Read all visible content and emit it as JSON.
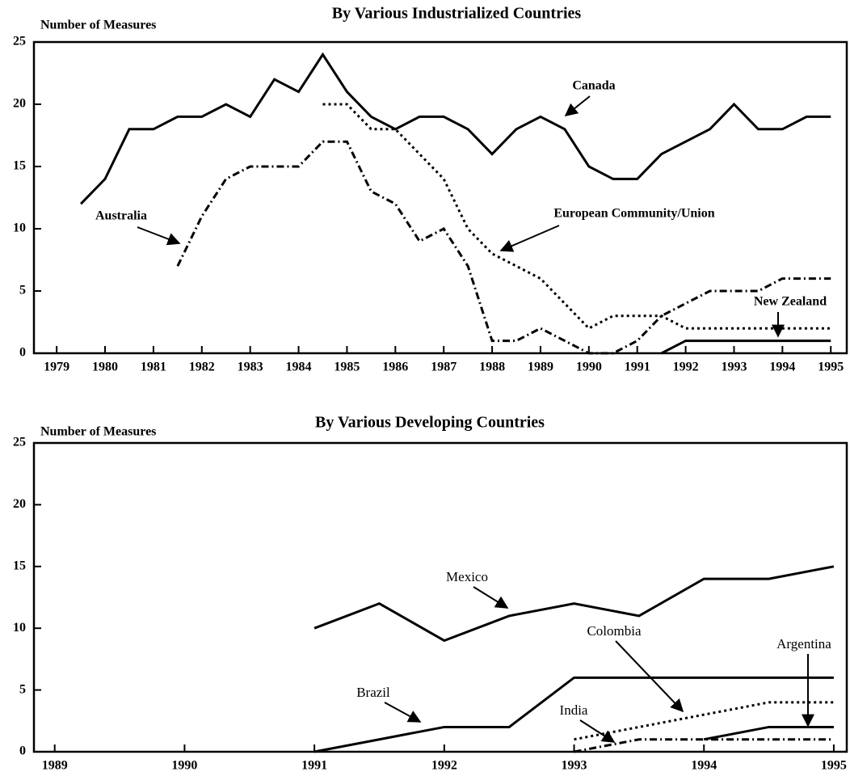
{
  "chart_data": [
    {
      "type": "line",
      "title": "By Various Industrialized Countries",
      "y_label": "Number of Measures",
      "x": [
        1979.5,
        1980,
        1980.5,
        1981,
        1981.5,
        1982,
        1982.5,
        1983,
        1983.5,
        1984,
        1984.5,
        1985,
        1985.5,
        1986,
        1986.5,
        1987,
        1987.5,
        1988,
        1988.5,
        1989,
        1989.5,
        1990,
        1990.5,
        1991,
        1991.5,
        1992,
        1992.5,
        1993,
        1993.5,
        1994,
        1994.5,
        1995
      ],
      "series": [
        {
          "name": "Canada",
          "color": "#000000",
          "dash": "solid",
          "values": [
            12,
            14,
            18,
            18,
            19,
            19,
            20,
            19,
            22,
            21,
            24,
            21,
            19,
            18,
            19,
            19,
            18,
            16,
            18,
            19,
            18,
            15,
            14,
            14,
            16,
            17,
            18,
            20,
            18,
            18,
            19,
            19
          ]
        },
        {
          "name": "European Community/Union",
          "color": "#000000",
          "dash": "dot",
          "values": [
            null,
            null,
            null,
            null,
            null,
            null,
            null,
            null,
            null,
            null,
            20,
            20,
            18,
            18,
            16,
            14,
            10,
            8,
            7,
            6,
            4,
            2,
            3,
            3,
            3,
            2,
            2,
            2,
            2,
            2,
            2,
            2
          ]
        },
        {
          "name": "Australia",
          "color": "#000000",
          "dash": "dashdot",
          "values": [
            null,
            null,
            null,
            null,
            7,
            11,
            14,
            15,
            15,
            15,
            17,
            17,
            13,
            12,
            9,
            10,
            7,
            1,
            1,
            2,
            1,
            0,
            0,
            1,
            3,
            4,
            5,
            5,
            5,
            6,
            6,
            6
          ]
        },
        {
          "name": "New Zealand",
          "color": "#000000",
          "dash": "solid",
          "values": [
            null,
            null,
            null,
            null,
            null,
            null,
            null,
            null,
            null,
            null,
            null,
            null,
            null,
            null,
            null,
            null,
            null,
            null,
            null,
            null,
            null,
            null,
            null,
            null,
            0,
            1,
            1,
            1,
            1,
            1,
            1,
            1
          ]
        }
      ],
      "xlim": [
        1978.53,
        1995.33
      ],
      "ylim": [
        0,
        25
      ],
      "xticks": [
        1979,
        1980,
        1981,
        1982,
        1983,
        1984,
        1985,
        1986,
        1987,
        1988,
        1989,
        1990,
        1991,
        1992,
        1993,
        1994,
        1995
      ],
      "yticks": [
        0,
        5,
        10,
        15,
        20,
        25
      ]
    },
    {
      "type": "line",
      "title": "By Various Developing Countries",
      "y_label": "Number of Measures",
      "x": [
        1991,
        1991.5,
        1992,
        1992.5,
        1993,
        1993.5,
        1994,
        1994.5,
        1995
      ],
      "series": [
        {
          "name": "Mexico",
          "color": "#000000",
          "dash": "solid",
          "values": [
            10,
            12,
            9,
            11,
            12,
            11,
            14,
            14,
            15
          ]
        },
        {
          "name": "Brazil",
          "color": "#000000",
          "dash": "solid",
          "values": [
            0,
            1,
            2,
            2,
            6,
            6,
            6,
            6,
            6
          ]
        },
        {
          "name": "Colombia",
          "color": "#000000",
          "dash": "dot",
          "values": [
            null,
            null,
            null,
            null,
            1,
            2,
            3,
            4,
            4
          ]
        },
        {
          "name": "India",
          "color": "#000000",
          "dash": "dashdot",
          "values": [
            null,
            null,
            null,
            null,
            0,
            1,
            1,
            1,
            1
          ]
        },
        {
          "name": "Argentina",
          "color": "#000000",
          "dash": "solid",
          "values": [
            null,
            null,
            null,
            null,
            null,
            null,
            1,
            2,
            2
          ]
        }
      ],
      "xlim": [
        1988.84,
        1995.1
      ],
      "ylim": [
        0,
        25
      ],
      "xticks": [
        1989,
        1990,
        1991,
        1992,
        1993,
        1994,
        1995
      ],
      "yticks": [
        0,
        5,
        10,
        15,
        20,
        25
      ]
    }
  ]
}
